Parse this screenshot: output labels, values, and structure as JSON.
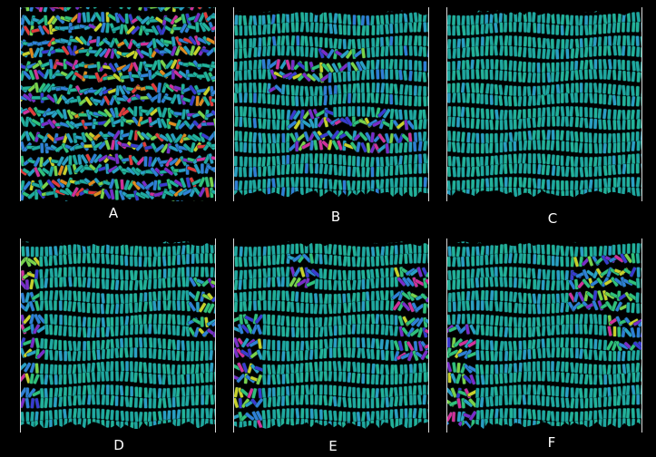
{
  "panels": [
    {
      "label": "A",
      "mode": "isotropic"
    },
    {
      "label": "B",
      "mode": "partial"
    },
    {
      "label": "C",
      "mode": "aligned"
    },
    {
      "label": "D",
      "mode": "aligned-edge-defects"
    },
    {
      "label": "E",
      "mode": "aligned-edge-defects"
    },
    {
      "label": "F",
      "mode": "aligned-edge-defects"
    }
  ],
  "colors": {
    "background": "#000000",
    "dominant": "#1fa8a0",
    "palette": [
      "#1fa8a0",
      "#22b29a",
      "#2a9fc4",
      "#2f7fd6",
      "#30c07a",
      "#7ad24a",
      "#c8d02a",
      "#e08a1e",
      "#d0309a",
      "#7a2cc8",
      "#3a3ad0",
      "#e23a3a"
    ],
    "wall": "#d8d8d8",
    "label": "#ffffff"
  }
}
